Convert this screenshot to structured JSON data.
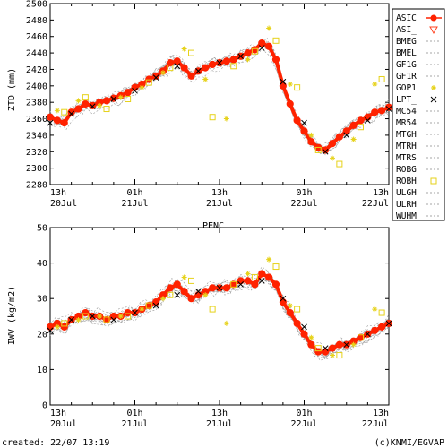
{
  "station": "PENC",
  "footer": {
    "created": "created: 22/07 13:19",
    "credit": "(c)KNMI/EGVAP"
  },
  "colors": {
    "primary_series": "#ff2200",
    "secondary_series": "#ff4422",
    "highlight_series": "#ffee22",
    "black_series": "#000000",
    "gray_series": "#888888"
  },
  "chart_data": [
    {
      "type": "scatter",
      "title": "",
      "xlabel": "",
      "ylabel": "ZTD (mm)",
      "ylim": [
        2280,
        2500
      ],
      "yticks": [
        2280,
        2300,
        2320,
        2340,
        2360,
        2380,
        2400,
        2420,
        2440,
        2460,
        2480,
        2500
      ],
      "xlim_hours": [
        0,
        48
      ],
      "xticks": [
        {
          "hour": 0,
          "label_top": "13h",
          "label_bottom": "20Jul"
        },
        {
          "hour": 12,
          "label_top": "01h",
          "label_bottom": "21Jul"
        },
        {
          "hour": 24,
          "label_top": "13h",
          "label_bottom": "21Jul"
        },
        {
          "hour": 36,
          "label_top": "01h",
          "label_bottom": "22Jul"
        },
        {
          "hour": 48,
          "label_top": "13h",
          "label_bottom": "22Jul"
        }
      ],
      "legend_position": "right",
      "legend": [
        "ASIC",
        "ASI_",
        "BMEG",
        "BMEL",
        "GF1G",
        "GF1R",
        "GOP1",
        "LPT_",
        "MC54",
        "MR54",
        "MTGH",
        "MTRH",
        "MTRS",
        "ROBG",
        "ROBH",
        "ULGH",
        "ULRH",
        "WUHM"
      ],
      "series": [
        {
          "name": "ASIC",
          "x": [
            0,
            1,
            2,
            3,
            4,
            5,
            6,
            7,
            8,
            9,
            10,
            11,
            12,
            13,
            14,
            15,
            16,
            17,
            18,
            19,
            20,
            21,
            22,
            23,
            24,
            25,
            26,
            27,
            28,
            29,
            30,
            31,
            32,
            33,
            34,
            35,
            36,
            37,
            38,
            39,
            40,
            41,
            42,
            43,
            44,
            45,
            46,
            47,
            48
          ],
          "y": [
            2362,
            2358,
            2355,
            2368,
            2372,
            2378,
            2376,
            2380,
            2382,
            2385,
            2388,
            2392,
            2398,
            2402,
            2408,
            2412,
            2418,
            2428,
            2430,
            2422,
            2412,
            2418,
            2422,
            2426,
            2428,
            2430,
            2432,
            2436,
            2440,
            2444,
            2452,
            2448,
            2432,
            2400,
            2378,
            2358,
            2345,
            2332,
            2325,
            2322,
            2330,
            2338,
            2345,
            2352,
            2358,
            2362,
            2368,
            2370,
            2374
          ]
        },
        {
          "name": "LPT_",
          "x": [
            0,
            3,
            6,
            9,
            12,
            15,
            18,
            21,
            24,
            27,
            30,
            33,
            36,
            39,
            42,
            45,
            48
          ],
          "y": [
            2355,
            2366,
            2375,
            2384,
            2394,
            2410,
            2424,
            2418,
            2428,
            2436,
            2446,
            2405,
            2355,
            2320,
            2340,
            2358,
            2372
          ]
        },
        {
          "name": "GOP1",
          "x": [
            1,
            4,
            7,
            10,
            13,
            16,
            19,
            22,
            25,
            28,
            31,
            34,
            37,
            40,
            43,
            46
          ],
          "y": [
            2370,
            2382,
            2376,
            2386,
            2398,
            2416,
            2445,
            2408,
            2360,
            2432,
            2470,
            2402,
            2340,
            2312,
            2335,
            2402
          ]
        },
        {
          "name": "ROBH",
          "x": [
            2,
            5,
            8,
            11,
            14,
            17,
            20,
            23,
            26,
            29,
            32,
            35,
            38,
            41,
            44,
            47
          ],
          "y": [
            2368,
            2386,
            2372,
            2384,
            2404,
            2422,
            2440,
            2362,
            2424,
            2442,
            2455,
            2398,
            2322,
            2305,
            2350,
            2408
          ]
        }
      ]
    },
    {
      "type": "scatter",
      "title": "",
      "xlabel": "",
      "ylabel": "IWV (kg/m2)",
      "ylim": [
        0,
        50
      ],
      "yticks": [
        0,
        10,
        20,
        30,
        40,
        50
      ],
      "xlim_hours": [
        0,
        48
      ],
      "xticks": [
        {
          "hour": 0,
          "label_top": "13h",
          "label_bottom": "20Jul"
        },
        {
          "hour": 12,
          "label_top": "01h",
          "label_bottom": "21Jul"
        },
        {
          "hour": 24,
          "label_top": "13h",
          "label_bottom": "21Jul"
        },
        {
          "hour": 36,
          "label_top": "01h",
          "label_bottom": "22Jul"
        },
        {
          "hour": 48,
          "label_top": "13h",
          "label_bottom": "22Jul"
        }
      ],
      "series": [
        {
          "name": "ASIC",
          "x": [
            0,
            1,
            2,
            3,
            4,
            5,
            6,
            7,
            8,
            9,
            10,
            11,
            12,
            13,
            14,
            15,
            16,
            17,
            18,
            19,
            20,
            21,
            22,
            23,
            24,
            25,
            26,
            27,
            28,
            29,
            30,
            31,
            32,
            33,
            34,
            35,
            36,
            37,
            38,
            39,
            40,
            41,
            42,
            43,
            44,
            45,
            46,
            47,
            48
          ],
          "y": [
            22,
            23,
            22,
            24,
            25,
            26,
            25,
            25,
            24,
            25,
            25,
            26,
            26,
            27,
            28,
            29,
            31,
            33,
            34,
            32,
            30,
            31,
            32,
            33,
            33,
            33,
            34,
            35,
            35,
            34,
            37,
            36,
            34,
            29,
            26,
            23,
            20,
            17,
            15,
            15,
            16,
            17,
            17,
            18,
            19,
            20,
            21,
            22,
            23
          ]
        },
        {
          "name": "LPT_",
          "x": [
            0,
            3,
            6,
            9,
            12,
            15,
            18,
            21,
            24,
            27,
            30,
            33,
            36,
            39,
            42,
            45,
            48
          ],
          "y": [
            21,
            24,
            25,
            24,
            26,
            28,
            31,
            32,
            33,
            34,
            35,
            30,
            22,
            16,
            17,
            20,
            23
          ]
        },
        {
          "name": "GOP1",
          "x": [
            1,
            4,
            7,
            10,
            13,
            16,
            19,
            22,
            25,
            28,
            31,
            34,
            37,
            40,
            43,
            46
          ],
          "y": [
            22,
            24,
            25,
            25,
            27,
            30,
            36,
            31,
            23,
            37,
            41,
            28,
            19,
            14,
            17,
            27
          ]
        },
        {
          "name": "ROBH",
          "x": [
            2,
            5,
            8,
            11,
            14,
            17,
            20,
            23,
            26,
            29,
            32,
            35,
            38,
            41,
            44,
            47
          ],
          "y": [
            23,
            25,
            24,
            25,
            28,
            31,
            35,
            27,
            34,
            36,
            39,
            27,
            16,
            14,
            19,
            26
          ]
        }
      ]
    }
  ]
}
